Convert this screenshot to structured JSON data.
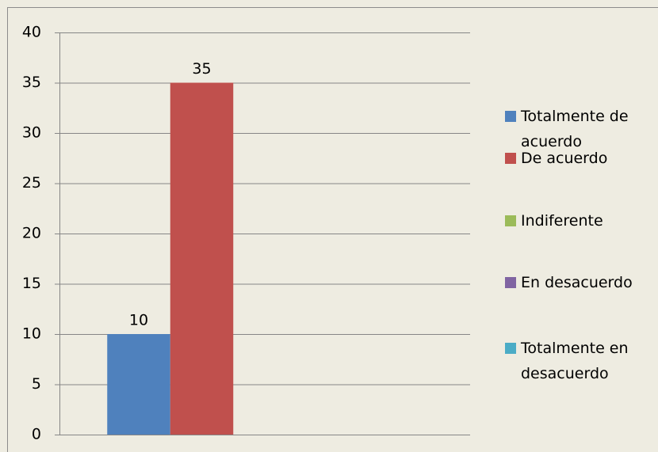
{
  "chart_data": {
    "type": "bar",
    "categories": [
      null
    ],
    "series": [
      {
        "name": "Totalmente de acuerdo",
        "color": "#4f81bd",
        "values": [
          10
        ]
      },
      {
        "name": "De acuerdo",
        "color": "#c0504d",
        "values": [
          35
        ]
      },
      {
        "name": "Indiferente",
        "color": "#9bbb59",
        "values": [
          null
        ]
      },
      {
        "name": "En desacuerdo",
        "color": "#8064a2",
        "values": [
          null
        ]
      },
      {
        "name": "Totalmente en desacuerdo",
        "color": "#4bacc6",
        "values": [
          null
        ]
      }
    ],
    "ylim": [
      0,
      40
    ],
    "yticks": [
      0,
      5,
      10,
      15,
      20,
      25,
      30,
      35,
      40
    ],
    "grid": true,
    "legend": "right"
  }
}
